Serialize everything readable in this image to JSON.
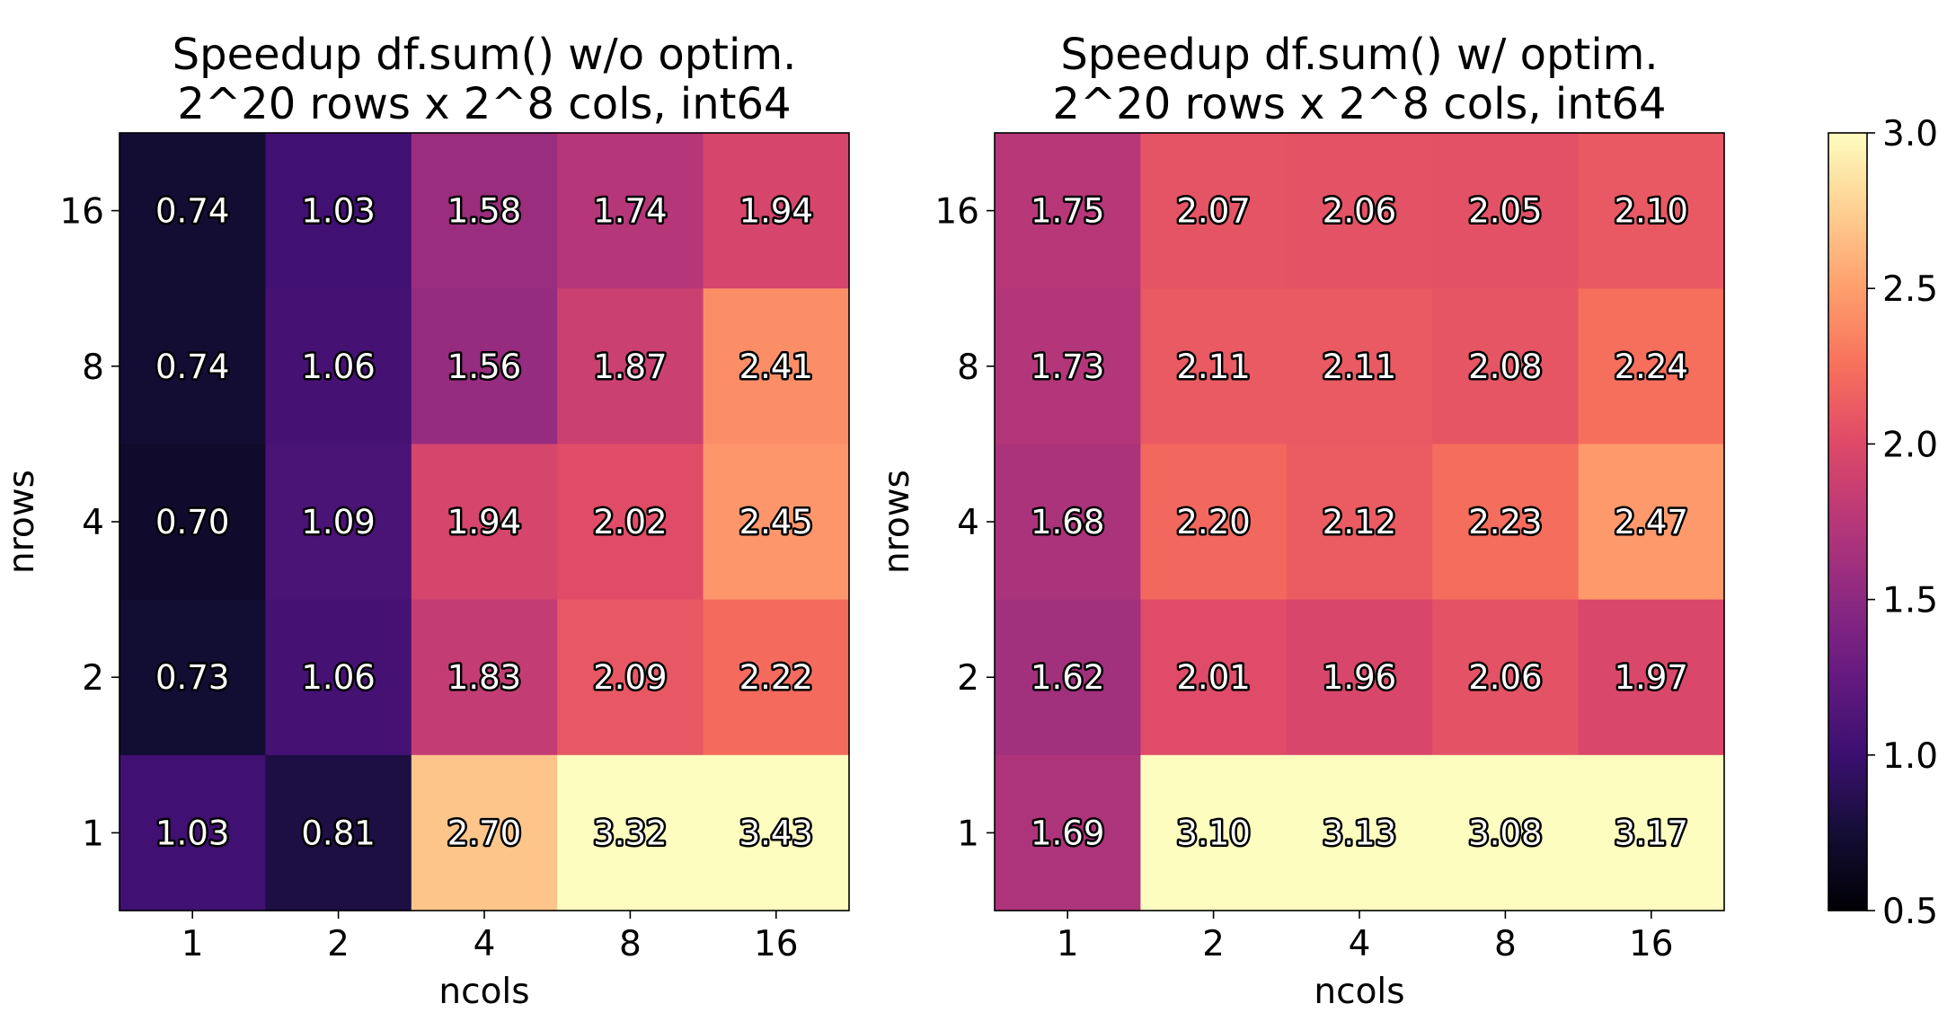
{
  "colorbar": {
    "ticks": [
      "0.5",
      "1.0",
      "1.5",
      "2.0",
      "2.5",
      "3.0"
    ],
    "range": [
      0.5,
      3.0
    ],
    "colormap": "magma"
  },
  "chart_data": [
    {
      "type": "heatmap",
      "title_line1": "Speedup df.sum() w/o optim.",
      "title_line2": "2^20 rows x 2^8 cols, int64",
      "xlabel": "ncols",
      "ylabel": "nrows",
      "x": [
        "1",
        "2",
        "4",
        "8",
        "16"
      ],
      "y": [
        "16",
        "8",
        "4",
        "2",
        "1"
      ],
      "values": [
        [
          0.74,
          1.03,
          1.58,
          1.74,
          1.94
        ],
        [
          0.74,
          1.06,
          1.56,
          1.87,
          2.41
        ],
        [
          0.7,
          1.09,
          1.94,
          2.02,
          2.45
        ],
        [
          0.73,
          1.06,
          1.83,
          2.09,
          2.22
        ],
        [
          1.03,
          0.81,
          2.7,
          3.32,
          3.43
        ]
      ],
      "labels": [
        [
          "0.74",
          "1.03",
          "1.58",
          "1.74",
          "1.94"
        ],
        [
          "0.74",
          "1.06",
          "1.56",
          "1.87",
          "2.41"
        ],
        [
          "0.70",
          "1.09",
          "1.94",
          "2.02",
          "2.45"
        ],
        [
          "0.73",
          "1.06",
          "1.83",
          "2.09",
          "2.22"
        ],
        [
          "1.03",
          "0.81",
          "2.70",
          "3.32",
          "3.43"
        ]
      ]
    },
    {
      "type": "heatmap",
      "title_line1": "Speedup df.sum() w/ optim.",
      "title_line2": "2^20 rows x 2^8 cols, int64",
      "xlabel": "ncols",
      "ylabel": "nrows",
      "x": [
        "1",
        "2",
        "4",
        "8",
        "16"
      ],
      "y": [
        "16",
        "8",
        "4",
        "2",
        "1"
      ],
      "values": [
        [
          1.75,
          2.07,
          2.06,
          2.05,
          2.1
        ],
        [
          1.73,
          2.11,
          2.11,
          2.08,
          2.24
        ],
        [
          1.68,
          2.2,
          2.12,
          2.23,
          2.47
        ],
        [
          1.62,
          2.01,
          1.96,
          2.06,
          1.97
        ],
        [
          1.69,
          3.1,
          3.13,
          3.08,
          3.17
        ]
      ],
      "labels": [
        [
          "1.75",
          "2.07",
          "2.06",
          "2.05",
          "2.10"
        ],
        [
          "1.73",
          "2.11",
          "2.11",
          "2.08",
          "2.24"
        ],
        [
          "1.68",
          "2.20",
          "2.12",
          "2.23",
          "2.47"
        ],
        [
          "1.62",
          "2.01",
          "1.96",
          "2.06",
          "1.97"
        ],
        [
          "1.69",
          "3.10",
          "3.13",
          "3.08",
          "3.17"
        ]
      ]
    }
  ]
}
